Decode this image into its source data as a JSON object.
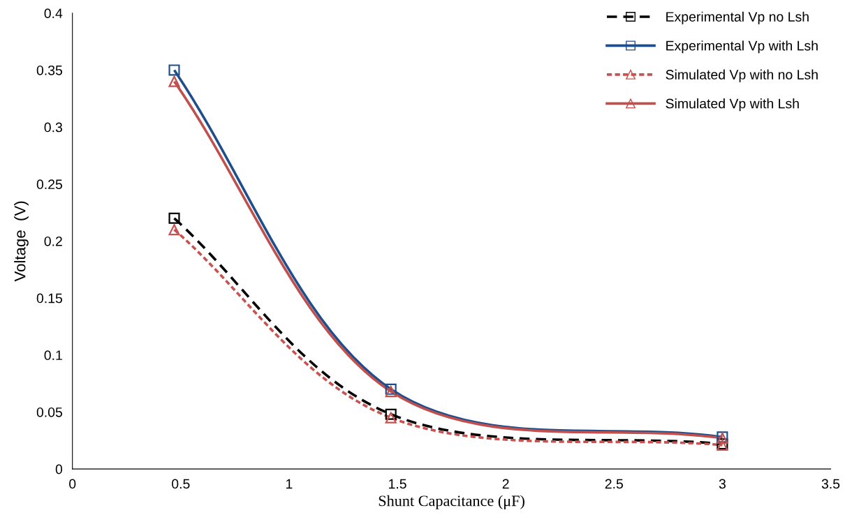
{
  "chart_data": {
    "type": "line",
    "xlabel": "Shunt Capacitance (μF)",
    "ylabel": "Voltage  (V)",
    "xlim": [
      0,
      3.5
    ],
    "xticks": [
      0,
      0.5,
      1,
      1.5,
      2,
      2.5,
      3,
      3.5
    ],
    "ylim": [
      0,
      0.4
    ],
    "yticks": [
      0,
      0.05,
      0.1,
      0.15,
      0.2,
      0.25,
      0.3,
      0.35,
      0.4
    ],
    "grid": false,
    "legend": "top right",
    "series": [
      {
        "name": "Experimental Vp no Lsh",
        "color": "#000000",
        "x": [
          0.47,
          1.47,
          3.0
        ],
        "values": [
          0.22,
          0.048,
          0.022
        ],
        "line_style": "dashed",
        "marker": "square"
      },
      {
        "name": "Experimental Vp with Lsh",
        "color": "#1f4e8c",
        "x": [
          0.47,
          1.47,
          3.0
        ],
        "values": [
          0.35,
          0.07,
          0.028
        ],
        "line_style": "solid",
        "marker": "square"
      },
      {
        "name": "Simulated Vp with no Lsh",
        "color": "#c8524f",
        "x": [
          0.47,
          1.47,
          3.0
        ],
        "values": [
          0.21,
          0.045,
          0.021
        ],
        "line_style": "dotted",
        "marker": "triangle"
      },
      {
        "name": "Simulated Vp with Lsh",
        "color": "#c0504d",
        "x": [
          0.47,
          1.47,
          3.0
        ],
        "values": [
          0.34,
          0.068,
          0.027
        ],
        "line_style": "solid",
        "marker": "triangle"
      }
    ]
  }
}
